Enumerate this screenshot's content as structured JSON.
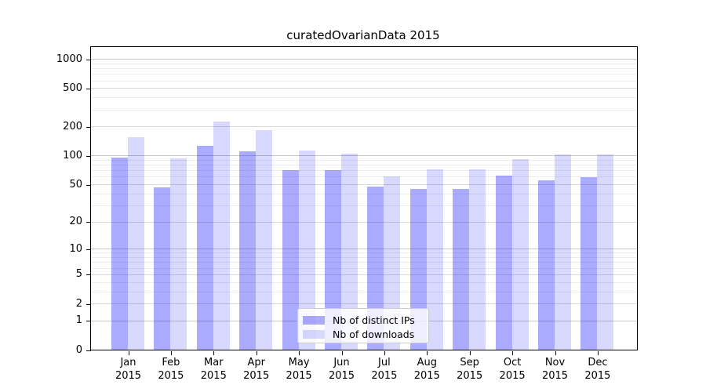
{
  "title": "curatedOvarianData 2015",
  "chart_data": {
    "type": "bar",
    "title": "curatedOvarianData 2015",
    "categories": [
      "Jan",
      "Feb",
      "Mar",
      "Apr",
      "May",
      "Jun",
      "Jul",
      "Aug",
      "Sep",
      "Oct",
      "Nov",
      "Dec"
    ],
    "year": "2015",
    "series": [
      {
        "name": "Nb of distinct IPs",
        "color": "rgba(0,0,255,0.33)",
        "values": [
          95,
          46,
          125,
          110,
          70,
          70,
          47,
          45,
          45,
          62,
          55,
          59
        ]
      },
      {
        "name": "Nb of downloads",
        "color": "rgba(0,0,255,0.15)",
        "values": [
          155,
          93,
          225,
          185,
          113,
          105,
          61,
          72,
          72,
          91,
          102,
          102
        ]
      }
    ],
    "xlabel": "",
    "ylabel": "",
    "yscale": "log1p",
    "ylim": [
      0,
      1300
    ],
    "yticks": [
      0,
      1,
      2,
      5,
      10,
      20,
      50,
      100,
      200,
      500,
      1000
    ],
    "minor_yticks": [
      3,
      4,
      6,
      7,
      8,
      9,
      30,
      40,
      60,
      70,
      80,
      90,
      300,
      400,
      600,
      700,
      800,
      900
    ],
    "grid": "both",
    "legend_position": "lower center-left inside plot",
    "colors": {
      "major_grid": "#d9d9d9",
      "decade_grid": "#c9c9c9",
      "minor_grid": "#ececec",
      "axis": "#000000",
      "background": "#ffffff"
    }
  }
}
